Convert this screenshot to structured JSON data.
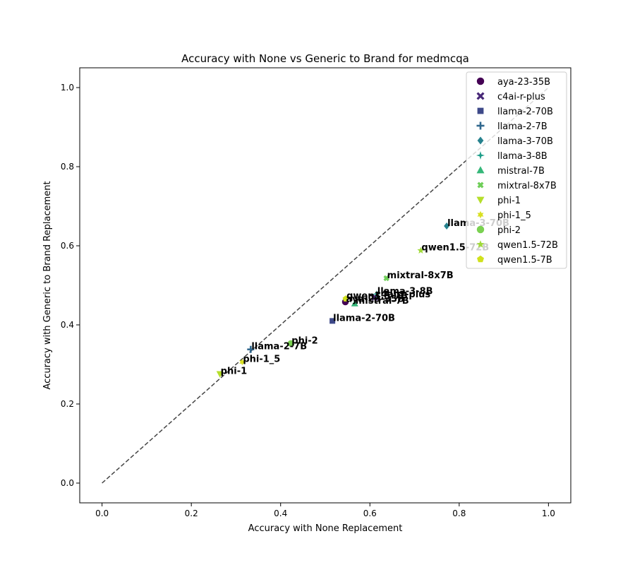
{
  "chart_data": {
    "type": "scatter",
    "title": "Accuracy with None vs Generic to Brand for medmcqa",
    "xlabel": "Accuracy with None Replacement",
    "ylabel": "Accuracy with Generic to Brand Replacement",
    "xlim": [
      -0.05,
      1.05
    ],
    "ylim": [
      -0.05,
      1.05
    ],
    "xticks": [
      0.0,
      0.2,
      0.4,
      0.6,
      0.8,
      1.0
    ],
    "yticks": [
      0.0,
      0.2,
      0.4,
      0.6,
      0.8,
      1.0
    ],
    "tick_labels": [
      "0.0",
      "0.2",
      "0.4",
      "0.6",
      "0.8",
      "1.0"
    ],
    "grid": false,
    "reference_line": {
      "style": "dashed",
      "from": [
        0,
        0
      ],
      "to": [
        1,
        1
      ],
      "color": "#444444"
    },
    "legend_position": "top-right",
    "series": [
      {
        "name": "aya-23-35B",
        "marker": "circle",
        "color": "#440154",
        "x": 0.545,
        "y": 0.458,
        "label": "aya-23-35B"
      },
      {
        "name": "c4ai-r-plus",
        "marker": "x",
        "color": "#482878",
        "x": 0.611,
        "y": 0.47,
        "label": "c4ai-r-plus"
      },
      {
        "name": "llama-2-70B",
        "marker": "square",
        "color": "#3e4989",
        "x": 0.516,
        "y": 0.41,
        "label": "llama-2-70B"
      },
      {
        "name": "llama-2-7B",
        "marker": "plus",
        "color": "#31688e",
        "x": 0.333,
        "y": 0.338,
        "label": "llama-2-7B"
      },
      {
        "name": "llama-3-70B",
        "marker": "diamond",
        "color": "#26828e",
        "x": 0.772,
        "y": 0.65,
        "label": "llama-3-70B"
      },
      {
        "name": "llama-3-8B",
        "marker": "star4",
        "color": "#1f9e89",
        "x": 0.615,
        "y": 0.478,
        "label": "llama-3-8B"
      },
      {
        "name": "mistral-7B",
        "marker": "triangle-up",
        "color": "#35b779",
        "x": 0.566,
        "y": 0.454,
        "label": "mistral-7B"
      },
      {
        "name": "mixtral-8x7B",
        "marker": "x-thick",
        "color": "#6ece58",
        "x": 0.637,
        "y": 0.518,
        "label": "mixtral-8x7B"
      },
      {
        "name": "phi-1",
        "marker": "triangle-down",
        "color": "#b5de2b",
        "x": 0.264,
        "y": 0.276,
        "label": "phi-1"
      },
      {
        "name": "phi-1_5",
        "marker": "star6",
        "color": "#d9e021",
        "x": 0.314,
        "y": 0.306,
        "label": "phi-1_5"
      },
      {
        "name": "phi-2",
        "marker": "circle",
        "color": "#7ad151",
        "x": 0.423,
        "y": 0.353,
        "label": "phi-2"
      },
      {
        "name": "qwen1.5-72B",
        "marker": "star5",
        "color": "#a0da39",
        "x": 0.714,
        "y": 0.588,
        "label": "qwen1.5-72B"
      },
      {
        "name": "qwen1.5-7B",
        "marker": "pentagon",
        "color": "#d0e11c",
        "x": 0.546,
        "y": 0.466,
        "label": "qwen1.5-7B"
      }
    ]
  }
}
